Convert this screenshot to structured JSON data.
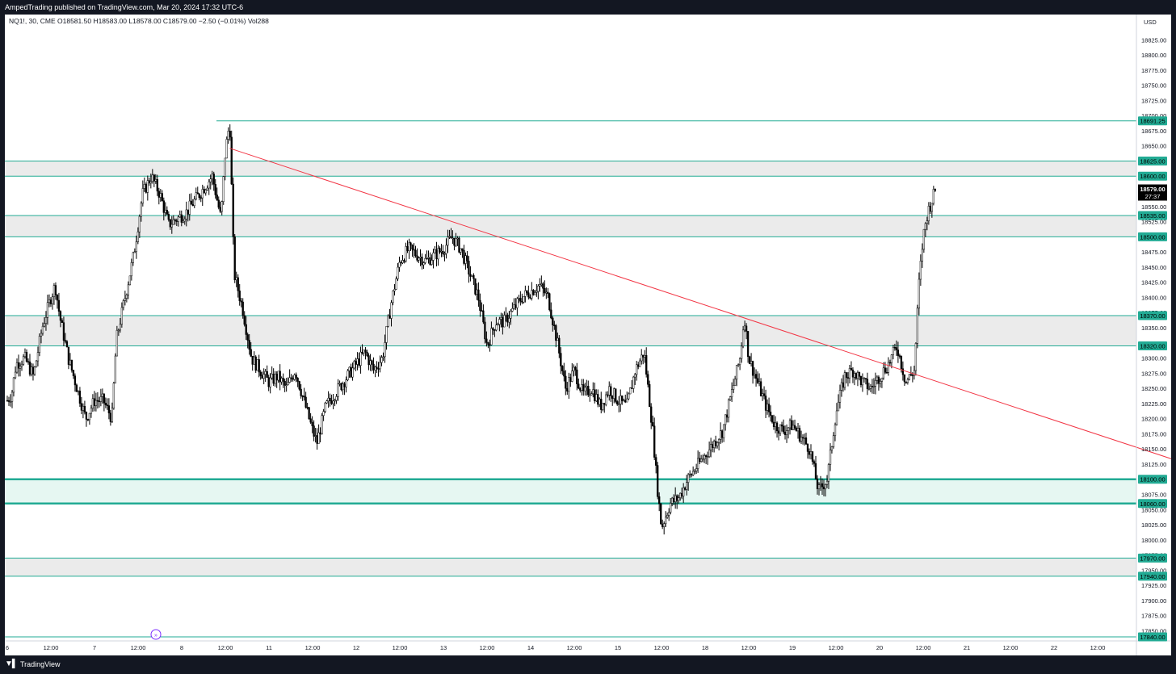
{
  "header": {
    "publisher_text": "AmpedTrading published on TradingView.com, Mar 20, 2024 17:32 UTC-6"
  },
  "symbol_bar": {
    "symbol": "NQ1!, 30, CME",
    "ohlc": "O18581.50 H18583.00 L18578.00 C18579.00 −2.50 (−0.01%) Vol288"
  },
  "price_axis": {
    "currency": "USD"
  },
  "current_price": {
    "value": "18579.00",
    "countdown": "27:37"
  },
  "footer": {
    "brand": "TradingView"
  },
  "colors": {
    "zone_line": "#22ab94",
    "zone_fill_gray": "#ebebeb",
    "zone_fill_green": "#e6f7f2",
    "trendline": "#f23645",
    "candle": "#000000",
    "price_label_bg": "#22ab94",
    "last_price_bg": "#000000",
    "frame_bg": "#131722"
  },
  "chart_data": {
    "type": "candlestick",
    "instrument": "NQ1!",
    "timeframe": "30",
    "x_tick_labels": [
      "6",
      "12:00",
      "7",
      "12:00",
      "8",
      "12:00",
      "11",
      "12:00",
      "12",
      "12:00",
      "13",
      "12:00",
      "14",
      "12:00",
      "15",
      "12:00",
      "18",
      "12:00",
      "19",
      "12:00",
      "20",
      "12:00",
      "21",
      "12:00",
      "22",
      "12:00"
    ],
    "y_tick_values": [
      18825,
      18800,
      18775,
      18750,
      18725,
      18700,
      18675,
      18650,
      18625,
      18600,
      18575,
      18550,
      18525,
      18500,
      18475,
      18450,
      18425,
      18400,
      18375,
      18350,
      18325,
      18300,
      18275,
      18250,
      18225,
      18200,
      18175,
      18150,
      18125,
      18100,
      18075,
      18050,
      18025,
      18000,
      17975,
      17950,
      17925,
      17900,
      17875,
      17850
    ],
    "y_range": [
      17840,
      18840
    ],
    "horizontal_levels": [
      "18691.25",
      "18625.00",
      "18600.00",
      "18535.00",
      "18500.00",
      "18370.00",
      "18320.00",
      "18100.00",
      "18060.00",
      "17970.00",
      "17940.00",
      "17840.00"
    ],
    "zones": [
      {
        "top": 18625,
        "bottom": 18600,
        "fill": "gray"
      },
      {
        "top": 18535,
        "bottom": 18500,
        "fill": "gray"
      },
      {
        "top": 18370,
        "bottom": 18320,
        "fill": "gray"
      },
      {
        "top": 18100,
        "bottom": 18060,
        "fill": "green"
      },
      {
        "top": 17970,
        "bottom": 17940,
        "fill": "gray"
      }
    ],
    "single_level": 18691.25,
    "bottom_level": 17840,
    "trendline": {
      "x_start_time": 2.55,
      "y_start": 18646,
      "x_end_time": 13.55,
      "y_end": 18124
    },
    "price_keypoints": [
      [
        0.0,
        18230
      ],
      [
        0.05,
        18240
      ],
      [
        0.1,
        18290
      ],
      [
        0.2,
        18300
      ],
      [
        0.3,
        18270
      ],
      [
        0.4,
        18350
      ],
      [
        0.5,
        18400
      ],
      [
        0.55,
        18420
      ],
      [
        0.6,
        18370
      ],
      [
        0.7,
        18300
      ],
      [
        0.8,
        18250
      ],
      [
        0.9,
        18200
      ],
      [
        1.0,
        18230
      ],
      [
        1.1,
        18230
      ],
      [
        1.2,
        18200
      ],
      [
        1.25,
        18330
      ],
      [
        1.35,
        18400
      ],
      [
        1.45,
        18470
      ],
      [
        1.55,
        18570
      ],
      [
        1.65,
        18600
      ],
      [
        1.75,
        18570
      ],
      [
        1.85,
        18520
      ],
      [
        1.95,
        18530
      ],
      [
        2.05,
        18540
      ],
      [
        2.15,
        18560
      ],
      [
        2.25,
        18580
      ],
      [
        2.35,
        18600
      ],
      [
        2.45,
        18530
      ],
      [
        2.5,
        18640
      ],
      [
        2.55,
        18690
      ],
      [
        2.6,
        18440
      ],
      [
        2.7,
        18380
      ],
      [
        2.8,
        18300
      ],
      [
        2.9,
        18280
      ],
      [
        3.0,
        18260
      ],
      [
        3.1,
        18270
      ],
      [
        3.2,
        18250
      ],
      [
        3.3,
        18280
      ],
      [
        3.4,
        18230
      ],
      [
        3.5,
        18180
      ],
      [
        3.55,
        18160
      ],
      [
        3.65,
        18220
      ],
      [
        3.75,
        18240
      ],
      [
        3.9,
        18270
      ],
      [
        4.0,
        18290
      ],
      [
        4.1,
        18310
      ],
      [
        4.2,
        18280
      ],
      [
        4.3,
        18300
      ],
      [
        4.4,
        18390
      ],
      [
        4.5,
        18460
      ],
      [
        4.6,
        18480
      ],
      [
        4.7,
        18470
      ],
      [
        4.8,
        18460
      ],
      [
        4.9,
        18470
      ],
      [
        5.0,
        18480
      ],
      [
        5.1,
        18500
      ],
      [
        5.2,
        18480
      ],
      [
        5.3,
        18440
      ],
      [
        5.4,
        18400
      ],
      [
        5.5,
        18320
      ],
      [
        5.6,
        18360
      ],
      [
        5.7,
        18360
      ],
      [
        5.8,
        18380
      ],
      [
        5.9,
        18400
      ],
      [
        6.0,
        18410
      ],
      [
        6.1,
        18420
      ],
      [
        6.2,
        18400
      ],
      [
        6.3,
        18330
      ],
      [
        6.4,
        18250
      ],
      [
        6.5,
        18280
      ],
      [
        6.6,
        18240
      ],
      [
        6.7,
        18250
      ],
      [
        6.8,
        18220
      ],
      [
        6.9,
        18250
      ],
      [
        7.0,
        18230
      ],
      [
        7.1,
        18220
      ],
      [
        7.2,
        18280
      ],
      [
        7.3,
        18310
      ],
      [
        7.4,
        18180
      ],
      [
        7.45,
        18090
      ],
      [
        7.5,
        18020
      ],
      [
        7.6,
        18060
      ],
      [
        7.7,
        18070
      ],
      [
        7.8,
        18100
      ],
      [
        7.9,
        18120
      ],
      [
        8.0,
        18140
      ],
      [
        8.1,
        18160
      ],
      [
        8.2,
        18180
      ],
      [
        8.3,
        18240
      ],
      [
        8.4,
        18300
      ],
      [
        8.45,
        18370
      ],
      [
        8.5,
        18300
      ],
      [
        8.6,
        18260
      ],
      [
        8.7,
        18220
      ],
      [
        8.8,
        18190
      ],
      [
        8.9,
        18180
      ],
      [
        9.0,
        18190
      ],
      [
        9.1,
        18170
      ],
      [
        9.2,
        18150
      ],
      [
        9.3,
        18080
      ],
      [
        9.4,
        18100
      ],
      [
        9.5,
        18210
      ],
      [
        9.6,
        18270
      ],
      [
        9.7,
        18280
      ],
      [
        9.8,
        18260
      ],
      [
        9.9,
        18250
      ],
      [
        10.0,
        18270
      ],
      [
        10.1,
        18290
      ],
      [
        10.2,
        18320
      ],
      [
        10.3,
        18260
      ],
      [
        10.4,
        18280
      ],
      [
        10.45,
        18420
      ],
      [
        10.5,
        18500
      ],
      [
        10.55,
        18540
      ],
      [
        10.6,
        18560
      ],
      [
        10.65,
        18583
      ]
    ]
  }
}
